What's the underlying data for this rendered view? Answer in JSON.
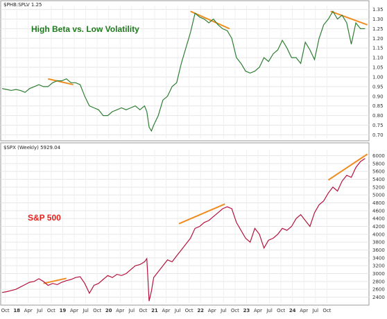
{
  "header_top": "$PHB:SPLV 1.25",
  "header_bottom": "$SPX (Weekly) 5929.04",
  "chart_data": [
    {
      "type": "line",
      "title": "High Beta vs. Low Volatility",
      "title_color": "#1e7a1e",
      "line_color": "#2e7d32",
      "grid": true,
      "y_axis_position": "right",
      "ylim": [
        0.68,
        1.37
      ],
      "y_ticks": [
        "1.35",
        "1.30",
        "1.25",
        "1.20",
        "1.15",
        "1.10",
        "1.05",
        "1.00",
        "0.95",
        "0.90",
        "0.85",
        "0.80",
        "0.75",
        "0.70"
      ],
      "series": [
        {
          "x": [
            2017.0,
            2017.1,
            2017.2,
            2017.3,
            2017.4,
            2017.5,
            2017.6,
            2017.7,
            2017.8,
            2017.9,
            2018.0,
            2018.1,
            2018.2,
            2018.3,
            2018.4,
            2018.5,
            2018.6,
            2018.7,
            2018.8,
            2018.9,
            2019.0,
            2019.1,
            2019.2,
            2019.3,
            2019.4,
            2019.5,
            2019.6,
            2019.7,
            2019.8,
            2019.9,
            2020.0,
            2020.1,
            2020.15,
            2020.2,
            2020.25,
            2020.3,
            2020.4,
            2020.5,
            2020.6,
            2020.7,
            2020.8,
            2020.9,
            2021.0,
            2021.1,
            2021.2,
            2021.3,
            2021.4,
            2021.5,
            2021.6,
            2021.7,
            2021.8,
            2021.9,
            2022.0,
            2022.1,
            2022.2,
            2022.3,
            2022.4,
            2022.5,
            2022.6,
            2022.7,
            2022.8,
            2022.9,
            2023.0,
            2023.1,
            2023.2,
            2023.3,
            2023.4,
            2023.5,
            2023.6,
            2023.7,
            2023.8,
            2023.9,
            2024.0,
            2024.1,
            2024.2,
            2024.3,
            2024.4,
            2024.5,
            2024.6,
            2024.7,
            2024.8,
            2024.9
          ],
          "values": [
            0.94,
            0.935,
            0.93,
            0.935,
            0.93,
            0.92,
            0.94,
            0.95,
            0.96,
            0.95,
            0.95,
            0.97,
            0.98,
            0.98,
            0.99,
            0.97,
            0.97,
            0.96,
            0.9,
            0.85,
            0.84,
            0.83,
            0.8,
            0.8,
            0.82,
            0.83,
            0.84,
            0.83,
            0.84,
            0.85,
            0.83,
            0.85,
            0.82,
            0.74,
            0.72,
            0.75,
            0.8,
            0.88,
            0.9,
            0.95,
            0.97,
            1.07,
            1.15,
            1.23,
            1.33,
            1.31,
            1.3,
            1.28,
            1.3,
            1.27,
            1.25,
            1.24,
            1.2,
            1.1,
            1.07,
            1.03,
            1.02,
            1.03,
            1.05,
            1.1,
            1.08,
            1.12,
            1.14,
            1.19,
            1.15,
            1.1,
            1.1,
            1.07,
            1.18,
            1.14,
            1.09,
            1.2,
            1.27,
            1.3,
            1.34,
            1.3,
            1.32,
            1.28,
            1.17,
            1.28,
            1.25,
            1.25
          ]
        }
      ],
      "trend_lines": [
        {
          "x": [
            2018.0,
            2018.55
          ],
          "values": [
            0.99,
            0.96
          ]
        },
        {
          "x": [
            2021.1,
            2021.95
          ],
          "values": [
            1.34,
            1.25
          ]
        },
        {
          "x": [
            2024.15,
            2024.95
          ],
          "values": [
            1.34,
            1.27
          ]
        }
      ],
      "trend_color": "#f08c1e"
    },
    {
      "type": "line",
      "title": "S&P 500",
      "title_color": "#e8201a",
      "line_color": "#b5123d",
      "grid": true,
      "y_axis_position": "right",
      "ylim": [
        2250,
        6150
      ],
      "y_ticks": [
        "6000",
        "5800",
        "5600",
        "5400",
        "5200",
        "5000",
        "4800",
        "4600",
        "4400",
        "4200",
        "4000",
        "3800",
        "3600",
        "3400",
        "3200",
        "3000",
        "2800",
        "2600",
        "2400"
      ],
      "x_ticks": [
        "Oct",
        "18",
        "Apr",
        "Jul",
        "Oct",
        "19",
        "Apr",
        "Jul",
        "Oct",
        "20",
        "Apr",
        "Jul",
        "Oct",
        "21",
        "Apr",
        "Jul",
        "Oct",
        "22",
        "Apr",
        "Jul",
        "Oct",
        "23",
        "Apr",
        "Jul",
        "Oct",
        "24",
        "Apr",
        "Jul",
        "Oct"
      ],
      "series": [
        {
          "x": [
            2017.0,
            2017.1,
            2017.2,
            2017.3,
            2017.4,
            2017.5,
            2017.6,
            2017.7,
            2017.8,
            2017.9,
            2018.0,
            2018.1,
            2018.2,
            2018.3,
            2018.4,
            2018.5,
            2018.6,
            2018.7,
            2018.8,
            2018.9,
            2019.0,
            2019.1,
            2019.2,
            2019.3,
            2019.4,
            2019.5,
            2019.6,
            2019.7,
            2019.8,
            2019.9,
            2020.0,
            2020.1,
            2020.15,
            2020.2,
            2020.25,
            2020.3,
            2020.4,
            2020.5,
            2020.6,
            2020.7,
            2020.8,
            2020.9,
            2021.0,
            2021.1,
            2021.2,
            2021.3,
            2021.4,
            2021.5,
            2021.6,
            2021.7,
            2021.8,
            2021.9,
            2022.0,
            2022.1,
            2022.2,
            2022.3,
            2022.4,
            2022.5,
            2022.6,
            2022.7,
            2022.8,
            2022.9,
            2023.0,
            2023.1,
            2023.2,
            2023.3,
            2023.4,
            2023.5,
            2023.6,
            2023.7,
            2023.8,
            2023.9,
            2024.0,
            2024.1,
            2024.2,
            2024.3,
            2024.4,
            2024.5,
            2024.6,
            2024.7,
            2024.8,
            2024.9
          ],
          "values": [
            2520,
            2540,
            2570,
            2600,
            2660,
            2720,
            2780,
            2800,
            2870,
            2800,
            2700,
            2750,
            2720,
            2780,
            2820,
            2850,
            2900,
            2920,
            2750,
            2500,
            2700,
            2750,
            2850,
            2950,
            2900,
            2980,
            2950,
            3000,
            3100,
            3200,
            3230,
            3300,
            3380,
            2300,
            2550,
            2900,
            3050,
            3200,
            3350,
            3300,
            3450,
            3600,
            3750,
            3900,
            4150,
            4200,
            4300,
            4350,
            4450,
            4550,
            4650,
            4700,
            4650,
            4300,
            4100,
            3900,
            3800,
            4150,
            4000,
            3650,
            3850,
            3900,
            4000,
            4150,
            4100,
            4200,
            4400,
            4500,
            4350,
            4200,
            4550,
            4750,
            4850,
            5050,
            5200,
            5100,
            5350,
            5500,
            5450,
            5700,
            5850,
            5929
          ]
        }
      ],
      "trend_lines": [
        {
          "x": [
            2017.9,
            2018.4
          ],
          "values": [
            2750,
            2880
          ]
        },
        {
          "x": [
            2020.85,
            2021.85
          ],
          "values": [
            4270,
            4770
          ]
        },
        {
          "x": [
            2024.1,
            2024.95
          ],
          "values": [
            5380,
            6040
          ]
        }
      ],
      "trend_color": "#f08c1e"
    }
  ]
}
